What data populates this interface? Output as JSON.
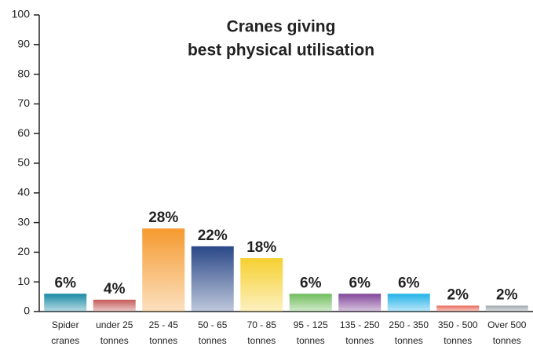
{
  "chart_data": {
    "type": "bar",
    "title": [
      "Cranes giving",
      "best physical utilisation"
    ],
    "categories": [
      [
        "Spider",
        "cranes"
      ],
      [
        "under 25",
        "tonnes"
      ],
      [
        "25 - 45",
        "tonnes"
      ],
      [
        "50 - 65",
        "tonnes"
      ],
      [
        "70 - 85",
        "tonnes"
      ],
      [
        "95 - 125",
        "tonnes"
      ],
      [
        "135 - 250",
        "tonnes"
      ],
      [
        "250 - 350",
        "tonnes"
      ],
      [
        "350 - 500",
        "tonnes"
      ],
      [
        "Over 500",
        "tonnes"
      ]
    ],
    "values": [
      6,
      4,
      28,
      22,
      18,
      6,
      6,
      6,
      2,
      2
    ],
    "value_labels": [
      "6%",
      "4%",
      "28%",
      "22%",
      "18%",
      "6%",
      "6%",
      "6%",
      "2%",
      "2%"
    ],
    "colors": [
      "#1a8aa6",
      "#c45a57",
      "#f59a2e",
      "#2a4888",
      "#f6d030",
      "#6fbd5c",
      "#83469a",
      "#22b2e8",
      "#e86a5a",
      "#9ea6ae"
    ],
    "ylim": [
      0,
      100
    ],
    "yticks": [
      0,
      10,
      20,
      30,
      40,
      50,
      60,
      70,
      80,
      90,
      100
    ]
  }
}
